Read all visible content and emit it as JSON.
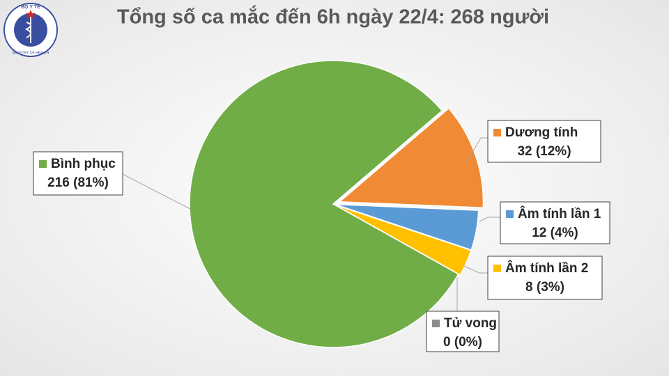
{
  "logo": {
    "top": "BỘ Y TẾ",
    "bottom": "MINISTRY OF HEALTH"
  },
  "chart_data": {
    "type": "pie",
    "title": "Tổng số ca mắc đến 6h ngày 22/4: 268 người",
    "categories": [
      "Dương tính",
      "Âm tính lần 1",
      "Âm tính lần 2",
      "Tử vong",
      "Bình phục"
    ],
    "values": [
      32,
      12,
      8,
      0,
      216
    ],
    "value_labels": [
      "32 (12%)",
      "12 (4%)",
      "8 (3%)",
      "0 (0%)",
      "216 (81%)"
    ],
    "colors": [
      "#f08a34",
      "#5b9bd5",
      "#ffc000",
      "#8c8c8c",
      "#70ad47"
    ]
  }
}
